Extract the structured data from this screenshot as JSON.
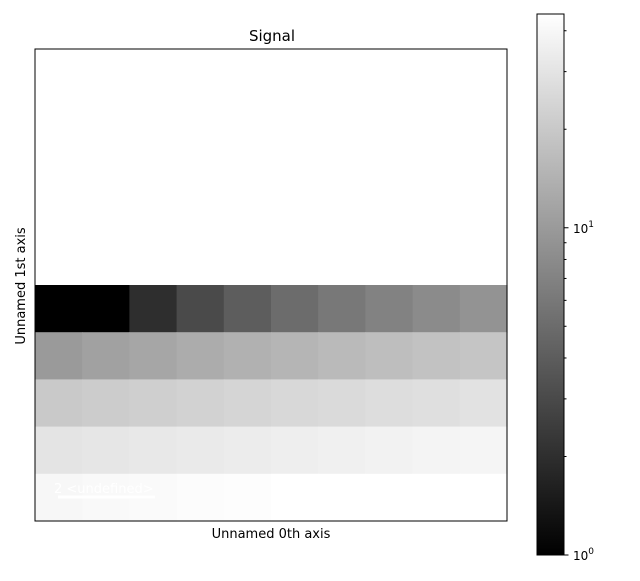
{
  "chart_data": {
    "type": "heatmap",
    "title": "Signal",
    "xlabel": "Unnamed 0th axis",
    "ylabel": "Unnamed 1st axis",
    "colormap": "gray",
    "color_scale": "log",
    "color_range": [
      1,
      45
    ],
    "colorbar": {
      "tick_labels": [
        {
          "base": "10",
          "exp": "0"
        },
        {
          "base": "10",
          "exp": "1"
        }
      ],
      "major_ticks": [
        1,
        10
      ],
      "minor_ticks": [
        2,
        3,
        4,
        5,
        6,
        7,
        8,
        9,
        20,
        30,
        40
      ]
    },
    "n_cols": 10,
    "n_rows": 10,
    "values": [
      [
        45,
        45,
        45,
        45,
        45,
        45,
        45,
        45,
        45,
        45
      ],
      [
        45,
        45,
        45,
        45,
        45,
        45,
        45,
        45,
        45,
        45
      ],
      [
        45,
        45,
        45,
        45,
        45,
        45,
        45,
        45,
        45,
        45
      ],
      [
        45,
        45,
        45,
        45,
        45,
        45,
        45,
        45,
        45,
        45
      ],
      [
        45,
        45,
        45,
        45,
        45,
        45,
        45,
        45,
        45,
        45
      ],
      [
        1,
        1,
        2,
        3,
        4,
        5,
        6,
        7,
        8,
        9
      ],
      [
        10,
        11,
        12,
        13,
        14,
        15,
        16,
        17,
        18,
        19
      ],
      [
        20,
        21,
        22,
        23,
        24,
        25,
        26,
        27,
        28,
        29
      ],
      [
        30,
        31,
        32,
        33,
        34,
        35,
        36,
        37,
        38,
        39
      ],
      [
        40,
        41,
        42,
        43,
        44,
        45,
        46,
        47,
        48,
        49
      ]
    ],
    "scalebar": {
      "label": "2 <undefined>",
      "color": "#ffffff"
    }
  }
}
